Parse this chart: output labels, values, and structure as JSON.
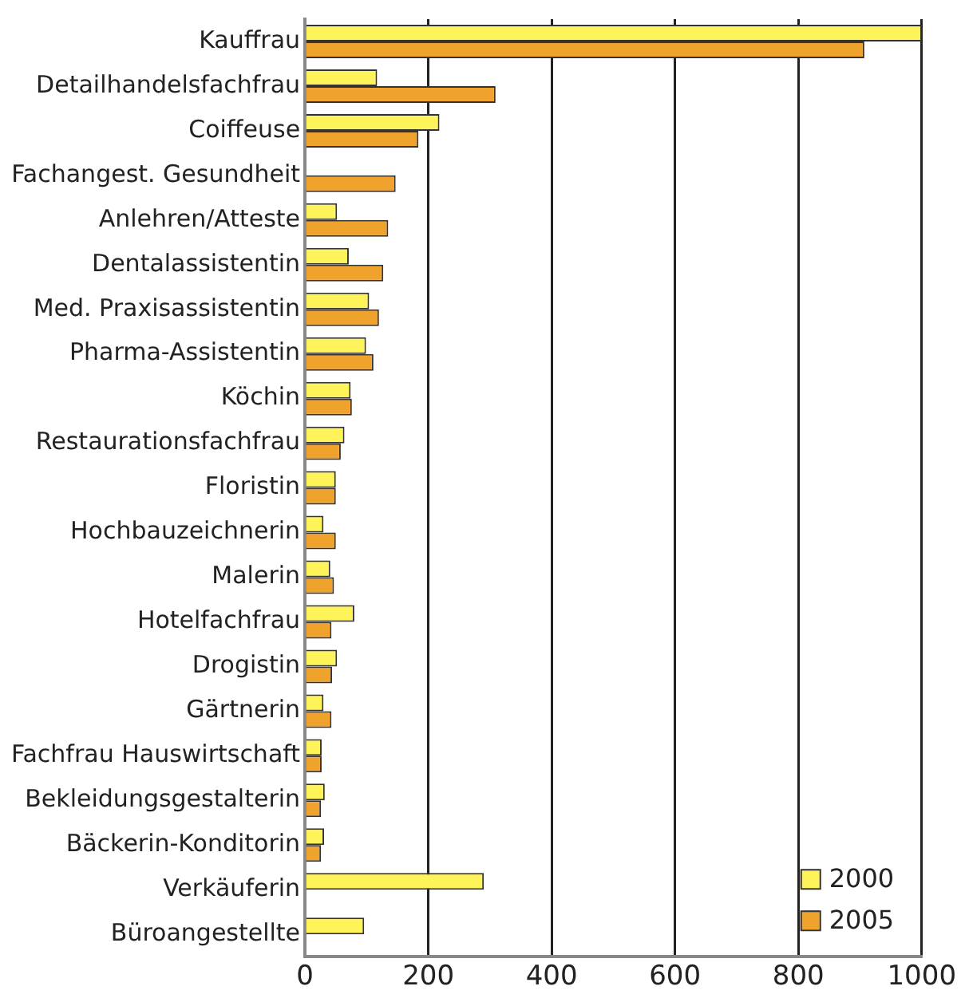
{
  "chart_data": {
    "type": "bar",
    "orientation": "horizontal",
    "categories": [
      "Kauffrau",
      "Detailhandelsfachfrau",
      "Coiffeuse",
      "Fachangest. Gesundheit",
      "Anlehren/Atteste",
      "Dentalassistentin",
      "Med. Praxisassistentin",
      "Pharma-Assistentin",
      "Köchin",
      "Restaurationsfachfrau",
      "Floristin",
      "Hochbauzeichnerin",
      "Malerin",
      "Hotelfachfrau",
      "Drogistin",
      "Gärtnerin",
      "Fachfrau Hauswirtschaft",
      "Bekleidungsgestalterin",
      "Bäckerin-Konditorin",
      "Verkäuferin",
      "Büroangestellte"
    ],
    "series": [
      {
        "name": "2000",
        "color": "#fff35a",
        "values": [
          1000,
          117,
          218,
          null,
          52,
          71,
          104,
          99,
          74,
          64,
          50,
          30,
          41,
          80,
          52,
          30,
          27,
          32,
          31,
          290,
          96
        ]
      },
      {
        "name": "2005",
        "color": "#f0a32c",
        "values": [
          907,
          309,
          184,
          147,
          135,
          127,
          120,
          111,
          76,
          58,
          50,
          50,
          47,
          43,
          44,
          43,
          27,
          26,
          26,
          null,
          null
        ]
      }
    ],
    "xlim": [
      0,
      1000
    ],
    "xticks": [
      0,
      200,
      400,
      600,
      800,
      1000
    ],
    "grid": "x",
    "legend": "bottom right"
  }
}
